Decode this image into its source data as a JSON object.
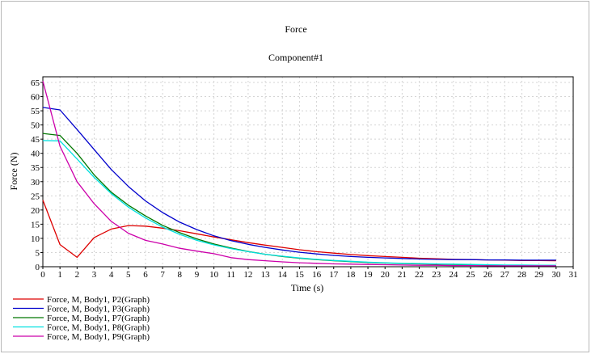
{
  "chart_data": {
    "type": "line",
    "title": "Force",
    "subtitle": "Component#1",
    "xlabel": "Time (s)",
    "ylabel": "Force (N)",
    "xlim": [
      0,
      31
    ],
    "ylim": [
      0,
      67
    ],
    "x_ticks": [
      0,
      1,
      2,
      3,
      4,
      5,
      6,
      7,
      8,
      9,
      10,
      11,
      12,
      13,
      14,
      15,
      16,
      17,
      18,
      19,
      20,
      21,
      22,
      23,
      24,
      25,
      26,
      27,
      28,
      29,
      30,
      31
    ],
    "y_ticks": [
      0,
      5,
      10,
      15,
      20,
      25,
      30,
      35,
      40,
      45,
      50,
      55,
      60,
      65
    ],
    "grid": true,
    "legend_position": "bottom-left",
    "series": [
      {
        "name": "Force, M, Body1, P2(Graph)",
        "color": "#dd0000",
        "x": [
          0,
          1,
          2,
          3,
          4,
          5,
          6,
          7,
          8,
          9,
          10,
          11,
          12,
          13,
          14,
          15,
          16,
          17,
          18,
          19,
          20,
          21,
          22,
          23,
          24,
          25,
          26,
          27,
          28,
          29,
          30
        ],
        "y": [
          23.5,
          7.8,
          3.3,
          10.3,
          13.3,
          14.5,
          14.3,
          13.6,
          12.7,
          11.6,
          10.5,
          9.5,
          8.5,
          7.6,
          6.8,
          6.0,
          5.3,
          4.8,
          4.3,
          3.9,
          3.6,
          3.3,
          3.0,
          2.8,
          2.6,
          2.5,
          2.4,
          2.3,
          2.2,
          2.2,
          2.1
        ]
      },
      {
        "name": "Force, M, Body1, P3(Graph)",
        "color": "#0000cc",
        "x": [
          0,
          1,
          2,
          3,
          4,
          5,
          6,
          7,
          8,
          9,
          10,
          11,
          12,
          13,
          14,
          15,
          16,
          17,
          18,
          19,
          20,
          21,
          22,
          23,
          24,
          25,
          26,
          27,
          28,
          29,
          30
        ],
        "y": [
          56.2,
          55.3,
          48.4,
          41.3,
          34.3,
          28.3,
          23.2,
          19.1,
          15.7,
          13.1,
          10.9,
          9.2,
          7.9,
          6.8,
          5.9,
          5.1,
          4.5,
          4.0,
          3.6,
          3.3,
          3.1,
          2.9,
          2.7,
          2.6,
          2.5,
          2.5,
          2.4,
          2.4,
          2.3,
          2.3,
          2.3
        ]
      },
      {
        "name": "Force, M, Body1, P7(Graph)",
        "color": "#007700",
        "x": [
          0,
          1,
          2,
          3,
          4,
          5,
          6,
          7,
          8,
          9,
          10,
          11,
          12,
          13,
          14,
          15,
          16,
          17,
          18,
          19,
          20,
          21,
          22,
          23,
          24,
          25,
          26,
          27,
          28,
          29,
          30
        ],
        "y": [
          47.0,
          46.3,
          40.0,
          32.4,
          26.3,
          21.7,
          17.9,
          14.6,
          12.0,
          9.8,
          8.0,
          6.6,
          5.4,
          4.4,
          3.6,
          3.0,
          2.5,
          2.1,
          1.8,
          1.5,
          1.3,
          1.1,
          1.0,
          0.9,
          0.8,
          0.7,
          0.6,
          0.5,
          0.5,
          0.4,
          0.4
        ]
      },
      {
        "name": "Force, M, Body1, P8(Graph)",
        "color": "#00e0e0",
        "x": [
          0,
          1,
          2,
          3,
          4,
          5,
          6,
          7,
          8,
          9,
          10,
          11,
          12,
          13,
          14,
          15,
          16,
          17,
          18,
          19,
          20,
          21,
          22,
          23,
          24,
          25,
          26,
          27,
          28,
          29,
          30
        ],
        "y": [
          44.5,
          44.4,
          38.0,
          31.5,
          25.8,
          21.0,
          17.2,
          14.0,
          11.4,
          9.3,
          7.7,
          6.4,
          5.3,
          4.4,
          3.7,
          3.1,
          2.6,
          2.2,
          1.9,
          1.6,
          1.4,
          1.2,
          1.1,
          1.0,
          0.9,
          0.8,
          0.7,
          0.6,
          0.6,
          0.5,
          0.5
        ]
      },
      {
        "name": "Force, M, Body1, P9(Graph)",
        "color": "#cc00aa",
        "x": [
          0,
          1,
          2,
          3,
          4,
          5,
          6,
          7,
          8,
          9,
          10,
          11,
          12,
          13,
          14,
          15,
          16,
          17,
          18,
          19,
          20,
          21,
          22,
          23,
          24,
          25,
          26,
          27,
          28,
          29,
          30
        ],
        "y": [
          65.5,
          42.5,
          30.0,
          22.2,
          16.0,
          11.8,
          9.3,
          8.0,
          6.5,
          5.5,
          4.6,
          3.2,
          2.5,
          2.1,
          1.7,
          1.4,
          1.2,
          1.0,
          0.9,
          0.8,
          0.7,
          0.6,
          0.5,
          0.5,
          0.4,
          0.4,
          0.3,
          0.3,
          0.3,
          0.3,
          0.3
        ]
      }
    ]
  }
}
